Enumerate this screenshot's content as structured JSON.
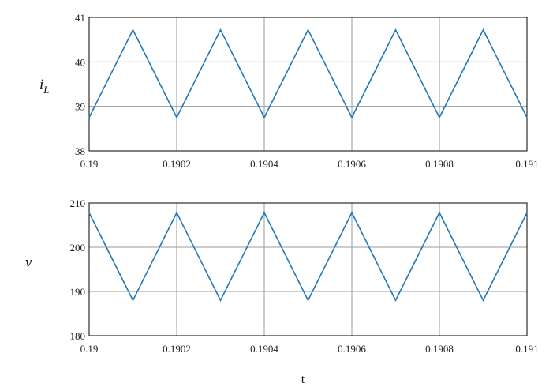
{
  "chart_data": [
    {
      "type": "line",
      "ylabel": "i",
      "ylabel_sub": "L",
      "xlabel": "",
      "xlim": [
        0.19,
        0.191
      ],
      "ylim": [
        38,
        41
      ],
      "x_ticks": [
        "0.19",
        "0.1902",
        "0.1904",
        "0.1906",
        "0.1908",
        "0.191"
      ],
      "y_ticks": [
        "38",
        "39",
        "40",
        "41"
      ],
      "grid": true,
      "line_color": "#1f77b4",
      "series": [
        {
          "x": [
            0.19,
            0.1901,
            0.1902,
            0.1903,
            0.1904,
            0.1905,
            0.1906,
            0.1907,
            0.1908,
            0.1909,
            0.191
          ],
          "y": [
            38.75,
            40.72,
            38.75,
            40.72,
            38.75,
            40.72,
            38.75,
            40.72,
            38.75,
            40.72,
            38.75
          ]
        }
      ]
    },
    {
      "type": "line",
      "ylabel": "v",
      "xlabel": "t",
      "xlim": [
        0.19,
        0.191
      ],
      "ylim": [
        180,
        210
      ],
      "x_ticks": [
        "0.19",
        "0.1902",
        "0.1904",
        "0.1906",
        "0.1908",
        "0.191"
      ],
      "y_ticks": [
        "180",
        "190",
        "200",
        "210"
      ],
      "grid": true,
      "line_color": "#1f77b4",
      "series": [
        {
          "x": [
            0.19,
            0.1901,
            0.1902,
            0.1903,
            0.1904,
            0.1905,
            0.1906,
            0.1907,
            0.1908,
            0.1909,
            0.191
          ],
          "y": [
            207.8,
            188.0,
            207.8,
            188.0,
            207.8,
            188.0,
            207.8,
            188.0,
            207.8,
            188.0,
            207.8
          ]
        }
      ]
    }
  ]
}
